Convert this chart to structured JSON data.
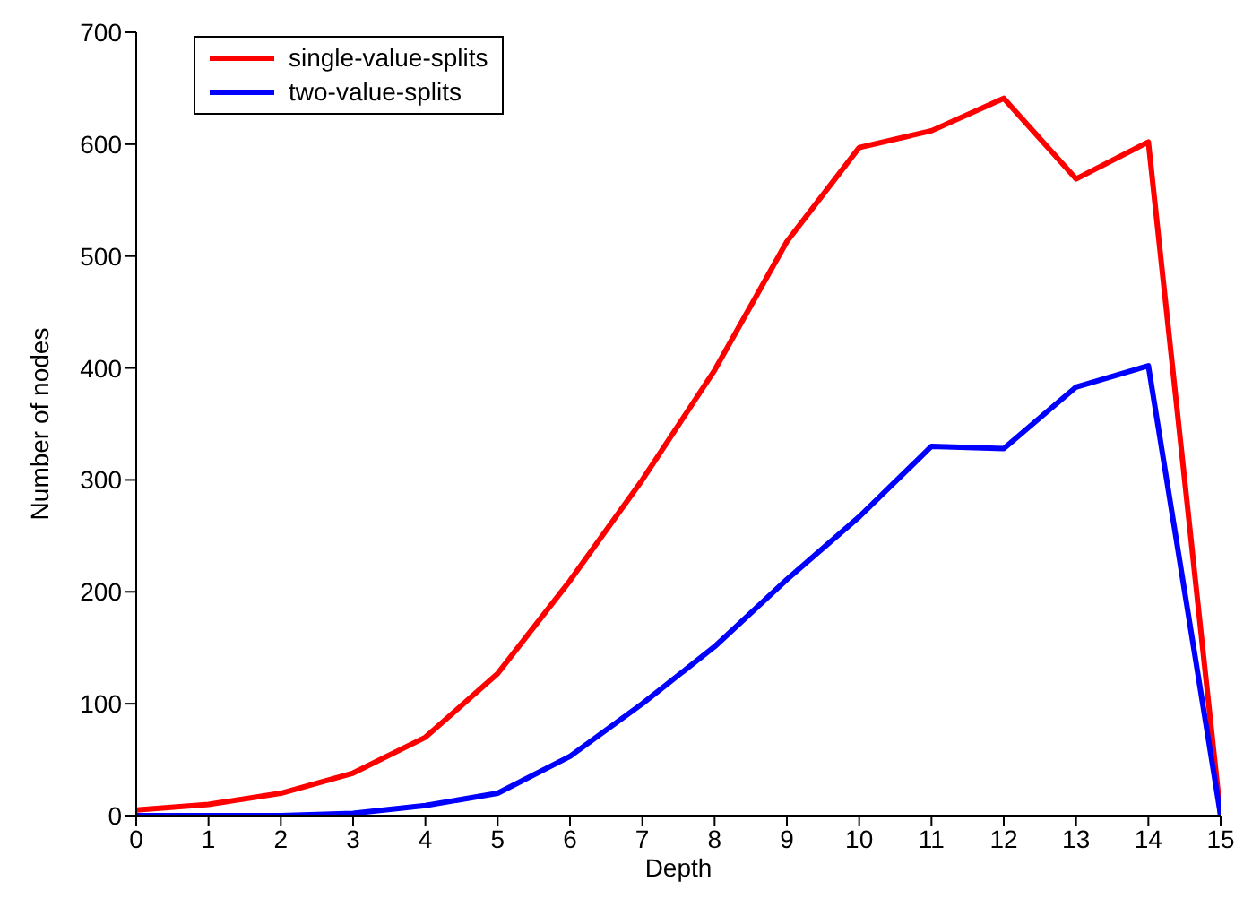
{
  "chart_data": {
    "type": "line",
    "xlabel": "Depth",
    "ylabel": "Number of nodes",
    "x": [
      0,
      1,
      2,
      3,
      4,
      5,
      6,
      7,
      8,
      9,
      10,
      11,
      12,
      13,
      14,
      15
    ],
    "series": [
      {
        "name": "single-value-splits",
        "color": "#ff0000",
        "values": [
          5,
          10,
          20,
          38,
          70,
          127,
          210,
          300,
          398,
          513,
          597,
          612,
          641,
          569,
          602,
          0
        ]
      },
      {
        "name": "two-value-splits",
        "color": "#0000ff",
        "values": [
          0,
          0,
          0,
          2,
          9,
          20,
          53,
          100,
          151,
          211,
          267,
          330,
          328,
          383,
          402,
          0
        ]
      }
    ],
    "xlim": [
      0,
      15
    ],
    "xticks": [
      0,
      1,
      2,
      3,
      4,
      5,
      6,
      7,
      8,
      9,
      10,
      11,
      12,
      13,
      14,
      15
    ],
    "ylim": [
      0,
      700
    ],
    "yticks": [
      0,
      100,
      200,
      300,
      400,
      500,
      600,
      700
    ],
    "grid": false,
    "legend": "top left",
    "marker": "none",
    "line_style": "solid"
  }
}
